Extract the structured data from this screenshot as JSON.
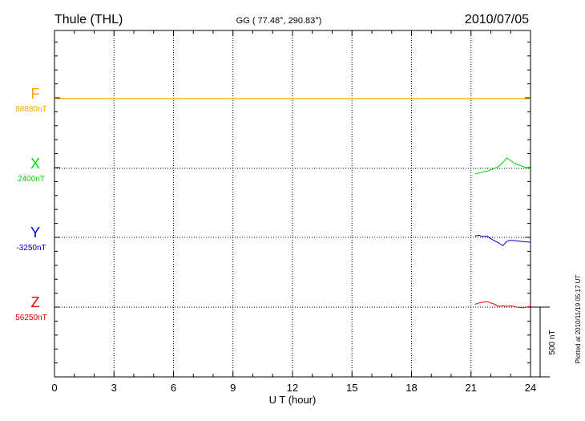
{
  "header": {
    "station": "Thule (THL)",
    "coords": "GG ( 77.48°, 290.83°)",
    "date": "2010/07/05"
  },
  "footer": {
    "plotted": "Plotted at 2010/11/19 05:17 UT"
  },
  "scale_bar": {
    "label": "500 nT",
    "value_nT": 500
  },
  "colors": {
    "F": "#ffa500",
    "X": "#00dd00",
    "Y": "#0000cc",
    "Z": "#dd0000",
    "axis": "#000000"
  },
  "chart_data": {
    "type": "line",
    "xlabel": "U T (hour)",
    "xlim": [
      0,
      24
    ],
    "x_ticks": [
      "0",
      "3",
      "6",
      "9",
      "12",
      "15",
      "18",
      "21",
      "24"
    ],
    "grid": true,
    "series": [
      {
        "name": "F",
        "baseline_label": "88880nT",
        "baseline_nT": 88880,
        "x": [
          0,
          6,
          12,
          18,
          24
        ],
        "y": [
          0,
          0,
          0,
          0,
          0
        ]
      },
      {
        "name": "X",
        "baseline_label": "2400nT",
        "baseline_nT": 2400,
        "x": [
          21.2,
          21.5,
          21.8,
          22.1,
          22.4,
          22.6,
          22.8,
          23.0,
          23.2,
          23.5,
          23.8,
          24.0
        ],
        "y": [
          -40,
          -30,
          -20,
          -5,
          15,
          40,
          75,
          55,
          35,
          20,
          5,
          0
        ]
      },
      {
        "name": "Y",
        "baseline_label": "-3250nT",
        "baseline_nT": -3250,
        "x": [
          21.2,
          21.4,
          21.6,
          21.8,
          22.0,
          22.2,
          22.4,
          22.6,
          22.8,
          23.0,
          23.3,
          23.6,
          24.0
        ],
        "y": [
          10,
          15,
          5,
          10,
          -10,
          -25,
          -40,
          -60,
          -30,
          -20,
          -25,
          -30,
          -35
        ]
      },
      {
        "name": "Z",
        "baseline_label": "56250nT",
        "baseline_nT": 56250,
        "x": [
          21.2,
          21.4,
          21.6,
          21.8,
          22.0,
          22.2,
          22.4,
          22.6,
          22.8,
          23.0,
          23.3,
          23.6,
          24.0
        ],
        "y": [
          20,
          30,
          35,
          40,
          30,
          20,
          5,
          10,
          5,
          10,
          0,
          -5,
          5
        ]
      }
    ]
  }
}
